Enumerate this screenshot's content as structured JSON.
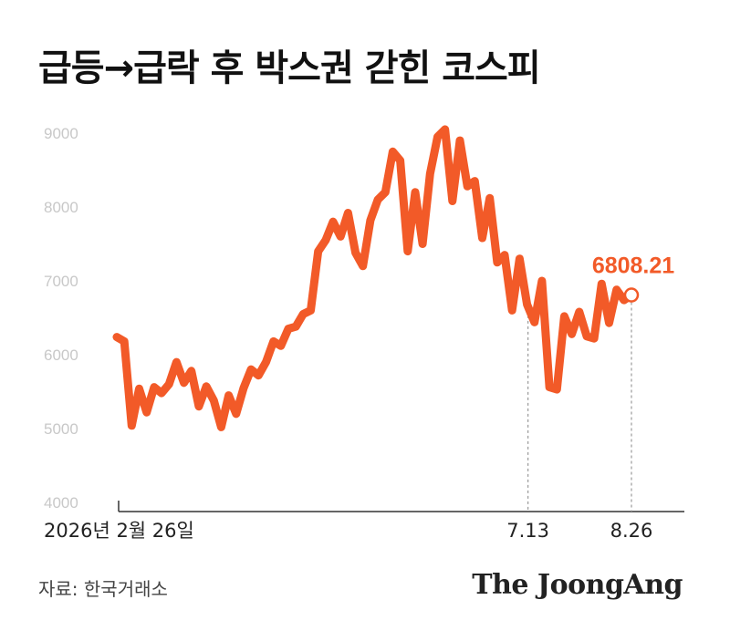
{
  "title": "급등→급락 후 박스권 갇힌 코스피",
  "source": "자료: 한국거래소",
  "brand": "The JoongAng",
  "colors": {
    "line": "#F25A28",
    "axis_text": "#C8C8C8",
    "axis_line": "#333333",
    "guide": "#999999"
  },
  "chart_data": {
    "type": "line",
    "title": "급등→급락 후 박스권 갇힌 코스피",
    "xlabel": "",
    "ylabel": "",
    "ylim": [
      4000,
      9000
    ],
    "yticks": [
      "9000",
      "8000",
      "7000",
      "6000",
      "5000",
      "4000"
    ],
    "grid": false,
    "x_tick_labels": [
      {
        "label": "2026년 2월 26일",
        "t": 0.0
      },
      {
        "label": "7.13",
        "t": 0.799
      },
      {
        "label": "8.26",
        "t": 1.0
      }
    ],
    "last_value_label": "6808.21",
    "series": [
      {
        "values": [
          6240,
          6180,
          5040,
          5540,
          5220,
          5560,
          5480,
          5600,
          5900,
          5620,
          5780,
          5300,
          5570,
          5380,
          5020,
          5450,
          5200,
          5550,
          5800,
          5720,
          5900,
          6180,
          6120,
          6350,
          6380,
          6550,
          6600,
          7400,
          7550,
          7800,
          7600,
          7920,
          7380,
          7200,
          7820,
          8100,
          8200,
          8750,
          8630,
          7400,
          8200,
          7500,
          8450,
          8950,
          9050,
          8080,
          8900,
          8280,
          8350,
          7580,
          8120,
          7250,
          7350,
          6600,
          7300,
          6680,
          6440,
          7000,
          5560,
          5530,
          6520,
          6280,
          6580,
          6250,
          6220,
          6960,
          6430,
          6880,
          6740,
          6808.21
        ]
      }
    ]
  }
}
